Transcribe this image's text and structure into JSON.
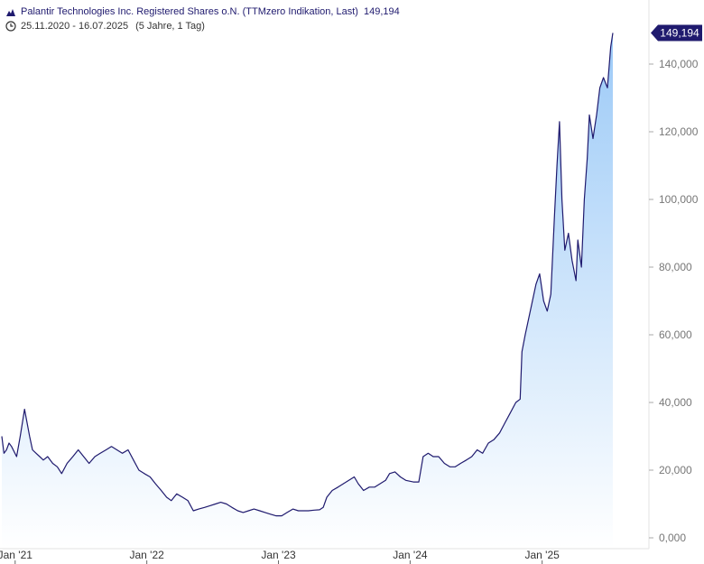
{
  "legend": {
    "title": "Palantir Technologies Inc. Registered Shares o.N. (TTMzero Indikation, Last)",
    "last_value": "149,194",
    "range": "25.11.2020 - 16.07.2025",
    "period": "(5 Jahre, 1 Tag)",
    "icons": [
      "mountain-chart-icon",
      "clock-icon"
    ]
  },
  "chart_data": {
    "type": "area",
    "title": "Palantir Technologies Inc. Registered Shares o.N. (TTMzero Indikation, Last)",
    "last_label": "149,194",
    "last_value": 149.194,
    "xlim": [
      "2020-11-25",
      "2025-07-16"
    ],
    "ylim": [
      0,
      155
    ],
    "y_ticks": [
      {
        "value": 0,
        "label": "0,000"
      },
      {
        "value": 20,
        "label": "20,000"
      },
      {
        "value": 40,
        "label": "40,000"
      },
      {
        "value": 60,
        "label": "60,000"
      },
      {
        "value": 80,
        "label": "80,000"
      },
      {
        "value": 100,
        "label": "100,000"
      },
      {
        "value": 120,
        "label": "120,000"
      },
      {
        "value": 140,
        "label": "140,000"
      }
    ],
    "x_ticks": [
      {
        "date": "2021-01-01",
        "label": "Jan '21"
      },
      {
        "date": "2022-01-01",
        "label": "Jan '22"
      },
      {
        "date": "2023-01-01",
        "label": "Jan '23"
      },
      {
        "date": "2024-01-01",
        "label": "Jan '24"
      },
      {
        "date": "2025-01-01",
        "label": "Jan '25"
      }
    ],
    "grid": false,
    "colors": {
      "line": "#1f1a6e",
      "fill_top": "#9ccaf7",
      "fill_bottom": "#ffffff",
      "label_bg": "#1f1a6e"
    },
    "series": [
      {
        "points": [
          [
            "2020-11-25",
            30
          ],
          [
            "2020-12-01",
            25
          ],
          [
            "2020-12-08",
            26
          ],
          [
            "2020-12-15",
            28
          ],
          [
            "2020-12-22",
            27
          ],
          [
            "2021-01-05",
            24
          ],
          [
            "2021-01-15",
            30
          ],
          [
            "2021-01-27",
            38
          ],
          [
            "2021-02-03",
            34
          ],
          [
            "2021-02-10",
            30
          ],
          [
            "2021-02-18",
            26
          ],
          [
            "2021-02-28",
            25
          ],
          [
            "2021-03-10",
            24
          ],
          [
            "2021-03-20",
            23
          ],
          [
            "2021-04-01",
            24
          ],
          [
            "2021-04-15",
            22
          ],
          [
            "2021-04-28",
            21
          ],
          [
            "2021-05-10",
            19
          ],
          [
            "2021-05-25",
            22
          ],
          [
            "2021-06-10",
            24
          ],
          [
            "2021-06-25",
            26
          ],
          [
            "2021-07-10",
            24
          ],
          [
            "2021-07-25",
            22
          ],
          [
            "2021-08-10",
            24
          ],
          [
            "2021-08-25",
            25
          ],
          [
            "2021-09-10",
            26
          ],
          [
            "2021-09-25",
            27
          ],
          [
            "2021-10-10",
            26
          ],
          [
            "2021-10-25",
            25
          ],
          [
            "2021-11-10",
            26
          ],
          [
            "2021-11-25",
            23
          ],
          [
            "2021-12-10",
            20
          ],
          [
            "2021-12-25",
            19
          ],
          [
            "2022-01-10",
            18
          ],
          [
            "2022-01-25",
            16
          ],
          [
            "2022-02-10",
            14
          ],
          [
            "2022-02-25",
            12
          ],
          [
            "2022-03-10",
            11
          ],
          [
            "2022-03-25",
            13
          ],
          [
            "2022-04-10",
            12
          ],
          [
            "2022-04-25",
            11
          ],
          [
            "2022-05-10",
            8
          ],
          [
            "2022-05-25",
            8.5
          ],
          [
            "2022-06-10",
            9
          ],
          [
            "2022-06-25",
            9.5
          ],
          [
            "2022-07-10",
            10
          ],
          [
            "2022-07-25",
            10.5
          ],
          [
            "2022-08-10",
            10
          ],
          [
            "2022-08-25",
            9
          ],
          [
            "2022-09-10",
            8
          ],
          [
            "2022-09-25",
            7.5
          ],
          [
            "2022-10-10",
            8
          ],
          [
            "2022-10-25",
            8.5
          ],
          [
            "2022-11-10",
            8
          ],
          [
            "2022-11-25",
            7.5
          ],
          [
            "2022-12-10",
            7
          ],
          [
            "2022-12-25",
            6.5
          ],
          [
            "2023-01-10",
            6.5
          ],
          [
            "2023-01-25",
            7.5
          ],
          [
            "2023-02-10",
            8.5
          ],
          [
            "2023-02-25",
            8
          ],
          [
            "2023-03-10",
            8
          ],
          [
            "2023-03-25",
            8
          ],
          [
            "2023-04-10",
            8.2
          ],
          [
            "2023-04-25",
            8.3
          ],
          [
            "2023-05-05",
            9
          ],
          [
            "2023-05-15",
            12
          ],
          [
            "2023-05-30",
            14
          ],
          [
            "2023-06-15",
            15
          ],
          [
            "2023-06-30",
            16
          ],
          [
            "2023-07-15",
            17
          ],
          [
            "2023-07-30",
            18
          ],
          [
            "2023-08-10",
            16
          ],
          [
            "2023-08-25",
            14
          ],
          [
            "2023-09-10",
            15
          ],
          [
            "2023-09-25",
            15
          ],
          [
            "2023-10-10",
            16
          ],
          [
            "2023-10-25",
            17
          ],
          [
            "2023-11-05",
            19
          ],
          [
            "2023-11-20",
            19.5
          ],
          [
            "2023-12-05",
            18
          ],
          [
            "2023-12-20",
            17
          ],
          [
            "2024-01-10",
            16.5
          ],
          [
            "2024-01-25",
            16.5
          ],
          [
            "2024-02-06",
            24
          ],
          [
            "2024-02-20",
            25
          ],
          [
            "2024-03-05",
            24
          ],
          [
            "2024-03-20",
            24
          ],
          [
            "2024-04-05",
            22
          ],
          [
            "2024-04-20",
            21
          ],
          [
            "2024-05-05",
            21
          ],
          [
            "2024-05-20",
            22
          ],
          [
            "2024-06-05",
            23
          ],
          [
            "2024-06-20",
            24
          ],
          [
            "2024-07-05",
            26
          ],
          [
            "2024-07-20",
            25
          ],
          [
            "2024-08-05",
            28
          ],
          [
            "2024-08-20",
            29
          ],
          [
            "2024-09-05",
            31
          ],
          [
            "2024-09-20",
            34
          ],
          [
            "2024-10-05",
            37
          ],
          [
            "2024-10-20",
            40
          ],
          [
            "2024-11-01",
            41
          ],
          [
            "2024-11-06",
            55
          ],
          [
            "2024-11-15",
            60
          ],
          [
            "2024-11-25",
            65
          ],
          [
            "2024-12-05",
            70
          ],
          [
            "2024-12-15",
            75
          ],
          [
            "2024-12-25",
            78
          ],
          [
            "2025-01-05",
            70
          ],
          [
            "2025-01-15",
            67
          ],
          [
            "2025-01-25",
            72
          ],
          [
            "2025-02-04",
            95
          ],
          [
            "2025-02-11",
            110
          ],
          [
            "2025-02-18",
            123
          ],
          [
            "2025-02-25",
            100
          ],
          [
            "2025-03-05",
            85
          ],
          [
            "2025-03-15",
            90
          ],
          [
            "2025-03-25",
            82
          ],
          [
            "2025-04-05",
            76
          ],
          [
            "2025-04-10",
            88
          ],
          [
            "2025-04-20",
            80
          ],
          [
            "2025-04-28",
            100
          ],
          [
            "2025-05-06",
            112
          ],
          [
            "2025-05-12",
            125
          ],
          [
            "2025-05-22",
            118
          ],
          [
            "2025-06-01",
            125
          ],
          [
            "2025-06-10",
            133
          ],
          [
            "2025-06-20",
            136
          ],
          [
            "2025-07-01",
            133
          ],
          [
            "2025-07-10",
            145
          ],
          [
            "2025-07-16",
            149.194
          ]
        ]
      }
    ]
  }
}
